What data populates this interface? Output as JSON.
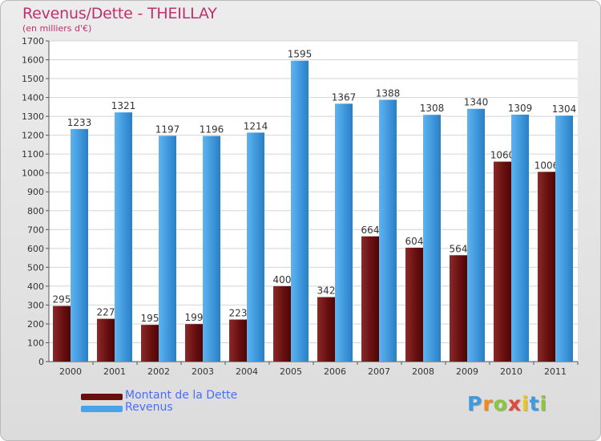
{
  "title": "Revenus/Dette - THEILLAY",
  "subtitle": "(en milliers d'€)",
  "chart_data": {
    "type": "bar",
    "title": "Revenus/Dette - THEILLAY",
    "ylabel": "(en milliers d'€)",
    "xlabel": "",
    "categories": [
      "2000",
      "2001",
      "2002",
      "2003",
      "2004",
      "2005",
      "2006",
      "2007",
      "2008",
      "2009",
      "2010",
      "2011"
    ],
    "series": [
      {
        "name": "Montant de la Dette",
        "color": "#7a1a1a",
        "values": [
          295,
          227,
          195,
          199,
          223,
          400,
          342,
          664,
          604,
          564,
          1060,
          1006
        ]
      },
      {
        "name": "Revenus",
        "color": "#4aa3e6",
        "values": [
          1233,
          1321,
          1197,
          1196,
          1214,
          1595,
          1367,
          1388,
          1308,
          1340,
          1309,
          1304
        ]
      }
    ],
    "ylim": [
      0,
      1700
    ],
    "yticks": [
      0,
      100,
      200,
      300,
      400,
      500,
      600,
      700,
      800,
      900,
      1000,
      1100,
      1200,
      1300,
      1400,
      1500,
      1600,
      1700
    ],
    "grid": true,
    "legend_position": "bottom-left"
  },
  "legend": [
    {
      "label": "Montant de la Dette",
      "color": "#6b0e0e"
    },
    {
      "label": "Revenus",
      "color": "#4aa3e6"
    }
  ],
  "logo": {
    "letters": [
      "P",
      "r",
      "o",
      "x",
      "i",
      "t",
      "i"
    ],
    "colors": [
      "#3f9be0",
      "#f08a1c",
      "#8cc63f",
      "#e04a3a",
      "#f0c419",
      "#3f9be0",
      "#8cc63f"
    ]
  }
}
